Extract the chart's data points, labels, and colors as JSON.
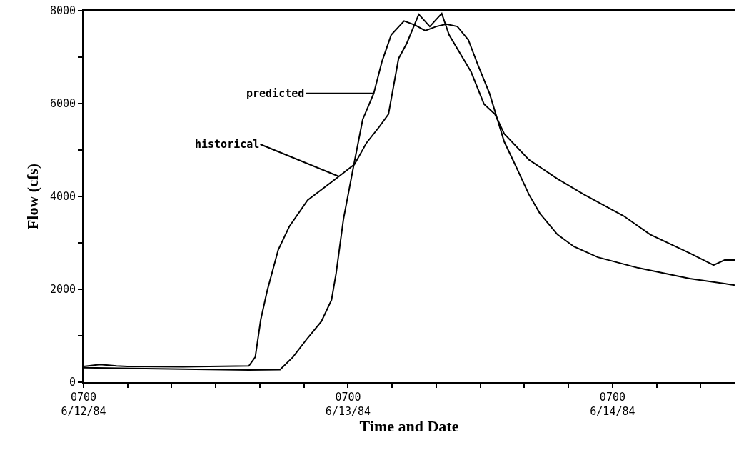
{
  "chart_data": {
    "type": "line",
    "xlabel": "Time and Date",
    "ylabel": "Flow (cfs)",
    "xlim": [
      "1984-06-12T07:00",
      "1984-06-14T18:05"
    ],
    "ylim": [
      0,
      8000
    ],
    "xticks": [
      {
        "value": "1984-06-12T07:00",
        "label": "0700\n6/12/84"
      },
      {
        "value": "1984-06-12T11:00",
        "label": null
      },
      {
        "value": "1984-06-12T15:00",
        "label": null
      },
      {
        "value": "1984-06-12T19:00",
        "label": null
      },
      {
        "value": "1984-06-12T23:00",
        "label": null
      },
      {
        "value": "1984-06-13T03:00",
        "label": null
      },
      {
        "value": "1984-06-13T07:00",
        "label": "0700\n6/13/84"
      },
      {
        "value": "1984-06-13T11:00",
        "label": null
      },
      {
        "value": "1984-06-13T15:00",
        "label": null
      },
      {
        "value": "1984-06-13T19:00",
        "label": null
      },
      {
        "value": "1984-06-13T23:00",
        "label": null
      },
      {
        "value": "1984-06-14T03:00",
        "label": null
      },
      {
        "value": "1984-06-14T07:00",
        "label": "0700\n6/14/84"
      },
      {
        "value": "1984-06-14T11:00",
        "label": null
      },
      {
        "value": "1984-06-14T15:00",
        "label": null
      }
    ],
    "yticks": [
      0,
      {
        "value": 1000,
        "label": null
      },
      2000,
      {
        "value": 3000,
        "label": null
      },
      4000,
      {
        "value": 5000,
        "label": null
      },
      6000,
      {
        "value": 7000,
        "label": null
      },
      8000
    ],
    "marker": "none",
    "line_style": "solid",
    "series": [
      {
        "color": "#000000",
        "x": [
          "1984-06-12T07:00",
          "1984-06-12T08:30",
          "1984-06-12T10:00",
          "1984-06-12T11:00",
          "1984-06-12T16:00",
          "1984-06-12T22:00",
          "1984-06-12T22:35",
          "1984-06-12T23:05",
          "1984-06-12T23:40",
          "1984-06-13T00:40",
          "1984-06-13T01:40",
          "1984-06-13T03:20",
          "1984-06-13T06:10",
          "1984-06-13T07:35",
          "1984-06-13T08:40",
          "1984-06-13T09:50",
          "1984-06-13T10:40",
          "1984-06-13T11:35",
          "1984-06-13T12:20",
          "1984-06-13T13:25",
          "1984-06-13T14:25",
          "1984-06-13T15:30",
          "1984-06-13T16:10",
          "1984-06-13T17:10",
          "1984-06-13T18:10",
          "1984-06-13T19:20",
          "1984-06-13T20:20",
          "1984-06-13T21:10",
          "1984-06-13T23:25",
          "1984-06-14T02:00",
          "1984-06-14T04:25",
          "1984-06-14T08:00",
          "1984-06-14T10:25",
          "1984-06-14T14:00",
          "1984-06-14T16:10",
          "1984-06-14T17:10",
          "1984-06-14T18:05"
        ],
        "values": [
          340,
          380,
          350,
          340,
          330,
          350,
          540,
          1350,
          1970,
          2850,
          3350,
          3920,
          4430,
          4690,
          5150,
          5500,
          5770,
          6970,
          7300,
          7920,
          7660,
          7940,
          7480,
          7080,
          6680,
          5990,
          5770,
          5350,
          4790,
          4380,
          4040,
          3580,
          3180,
          2780,
          2520,
          2630,
          2630
        ]
      },
      {
        "color": "#000000",
        "x": [
          "1984-06-12T07:00",
          "1984-06-12T16:00",
          "1984-06-12T22:00",
          "1984-06-13T00:50",
          "1984-06-13T02:00",
          "1984-06-13T03:20",
          "1984-06-13T04:35",
          "1984-06-13T05:30",
          "1984-06-13T05:55",
          "1984-06-13T06:35",
          "1984-06-13T07:30",
          "1984-06-13T08:20",
          "1984-06-13T09:20",
          "1984-06-13T10:05",
          "1984-06-13T10:55",
          "1984-06-13T12:05",
          "1984-06-13T13:05",
          "1984-06-13T14:00",
          "1984-06-13T15:00",
          "1984-06-13T15:55",
          "1984-06-13T16:55",
          "1984-06-13T17:55",
          "1984-06-13T18:50",
          "1984-06-13T19:50",
          "1984-06-13T21:10",
          "1984-06-13T22:10",
          "1984-06-13T23:25",
          "1984-06-14T00:25",
          "1984-06-14T02:00",
          "1984-06-14T03:30",
          "1984-06-14T05:40",
          "1984-06-14T09:20",
          "1984-06-14T14:00",
          "1984-06-14T18:05"
        ],
        "values": [
          310,
          280,
          260,
          270,
          540,
          950,
          1310,
          1770,
          2340,
          3510,
          4650,
          5660,
          6220,
          6910,
          7480,
          7780,
          7690,
          7570,
          7660,
          7710,
          7660,
          7370,
          6800,
          6220,
          5180,
          4680,
          4040,
          3630,
          3180,
          2920,
          2690,
          2460,
          2230,
          2090
        ]
      }
    ],
    "annotations": [
      {
        "text": "predicted",
        "x": "1984-06-13T09:20",
        "y": 6220
      },
      {
        "text": "historical",
        "x": "1984-06-13T06:10",
        "y": 4430
      }
    ]
  }
}
